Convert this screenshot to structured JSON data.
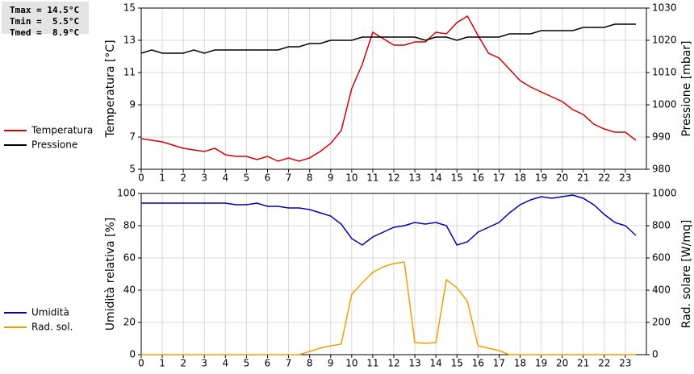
{
  "chart_data": [
    {
      "type": "line",
      "annotations": [
        "Tmax = 14.5°C",
        "Tmin =  5.5°C",
        "Tmed =  8.9°C"
      ],
      "y_label": "Temperatura [°C]",
      "y2_label": "Pressione [mbar]",
      "xlim": [
        0,
        24
      ],
      "xticks": [
        0,
        1,
        2,
        3,
        4,
        5,
        6,
        7,
        8,
        9,
        10,
        11,
        12,
        13,
        14,
        15,
        16,
        17,
        18,
        19,
        20,
        21,
        22,
        23
      ],
      "ylim": [
        5,
        15
      ],
      "yticks": [
        5,
        7,
        9,
        11,
        13,
        15
      ],
      "y2lim": [
        980,
        1030
      ],
      "y2ticks": [
        980,
        990,
        1000,
        1010,
        1020,
        1030
      ],
      "grid": true,
      "x": [
        0,
        0.5,
        1,
        1.5,
        2,
        2.5,
        3,
        3.5,
        4,
        4.5,
        5,
        5.5,
        6,
        6.5,
        7,
        7.5,
        8,
        8.5,
        9,
        9.5,
        10,
        10.5,
        11,
        11.5,
        12,
        12.5,
        13,
        13.5,
        14,
        14.5,
        15,
        15.5,
        16,
        16.5,
        17,
        17.5,
        18,
        18.5,
        19,
        19.5,
        20,
        20.5,
        21,
        21.5,
        22,
        22.5,
        23,
        23.5
      ],
      "series": [
        {
          "name": "Temperatura",
          "color": "#d40000",
          "values": [
            6.9,
            6.8,
            6.7,
            6.5,
            6.3,
            6.2,
            6.1,
            6.3,
            5.9,
            5.8,
            5.8,
            5.6,
            5.8,
            5.5,
            5.7,
            5.5,
            5.7,
            6.1,
            6.6,
            7.4,
            10.0,
            11.5,
            13.5,
            13.1,
            12.7,
            12.7,
            12.9,
            12.9,
            13.5,
            13.4,
            14.1,
            14.5,
            13.3,
            12.2,
            11.9,
            11.2,
            10.5,
            10.1,
            9.8,
            9.5,
            9.2,
            8.7,
            8.4,
            7.8,
            7.5,
            7.3,
            7.3,
            6.8
          ]
        },
        {
          "name": "Pressione",
          "color": "#000000",
          "axis": "y2",
          "values": [
            1016,
            1017,
            1016,
            1016,
            1016,
            1017,
            1016,
            1017,
            1017,
            1017,
            1017,
            1017,
            1017,
            1017,
            1018,
            1018,
            1019,
            1019,
            1020,
            1020,
            1020,
            1021,
            1021,
            1021,
            1021,
            1021,
            1021,
            1020,
            1021,
            1021,
            1020,
            1021,
            1021,
            1021,
            1021,
            1022,
            1022,
            1022,
            1023,
            1023,
            1023,
            1023,
            1024,
            1024,
            1024,
            1025,
            1025,
            1025
          ]
        }
      ]
    },
    {
      "type": "line",
      "y_label": "Umidità relativa [%]",
      "y2_label": "Rad. solare [W/mq]",
      "xlim": [
        0,
        24
      ],
      "xticks": [
        0,
        1,
        2,
        3,
        4,
        5,
        6,
        7,
        8,
        9,
        10,
        11,
        12,
        13,
        14,
        15,
        16,
        17,
        18,
        19,
        20,
        21,
        22,
        23
      ],
      "ylim": [
        0,
        100
      ],
      "yticks": [
        0,
        20,
        40,
        60,
        80,
        100
      ],
      "y2lim": [
        0,
        1000
      ],
      "y2ticks": [
        0,
        200,
        400,
        600,
        800,
        1000
      ],
      "grid": true,
      "x": [
        0,
        0.5,
        1,
        1.5,
        2,
        2.5,
        3,
        3.5,
        4,
        4.5,
        5,
        5.5,
        6,
        6.5,
        7,
        7.5,
        8,
        8.5,
        9,
        9.5,
        10,
        10.5,
        11,
        11.5,
        12,
        12.5,
        13,
        13.5,
        14,
        14.5,
        15,
        15.5,
        16,
        16.5,
        17,
        17.5,
        18,
        18.5,
        19,
        19.5,
        20,
        20.5,
        21,
        21.5,
        22,
        22.5,
        23,
        23.5
      ],
      "series": [
        {
          "name": "Umidità",
          "color": "#0000b4",
          "values": [
            94,
            94,
            94,
            94,
            94,
            94,
            94,
            94,
            94,
            93,
            93,
            94,
            92,
            92,
            91,
            91,
            90,
            88,
            86,
            81,
            72,
            68,
            73,
            76,
            79,
            80,
            82,
            81,
            82,
            80,
            68,
            70,
            76,
            79,
            82,
            88,
            93,
            96,
            98,
            97,
            98,
            99,
            97,
            93,
            87,
            82,
            80,
            74
          ]
        },
        {
          "name": "Rad. sol.",
          "color": "#f0a000",
          "axis": "y2",
          "values": [
            0,
            0,
            0,
            0,
            0,
            0,
            0,
            0,
            0,
            0,
            0,
            0,
            0,
            0,
            0,
            0,
            20,
            40,
            55,
            65,
            375,
            445,
            510,
            545,
            565,
            575,
            75,
            70,
            75,
            465,
            415,
            330,
            55,
            40,
            25,
            0,
            0,
            0,
            0,
            0,
            0,
            0,
            0,
            0,
            0,
            0,
            0,
            0
          ]
        }
      ]
    }
  ]
}
